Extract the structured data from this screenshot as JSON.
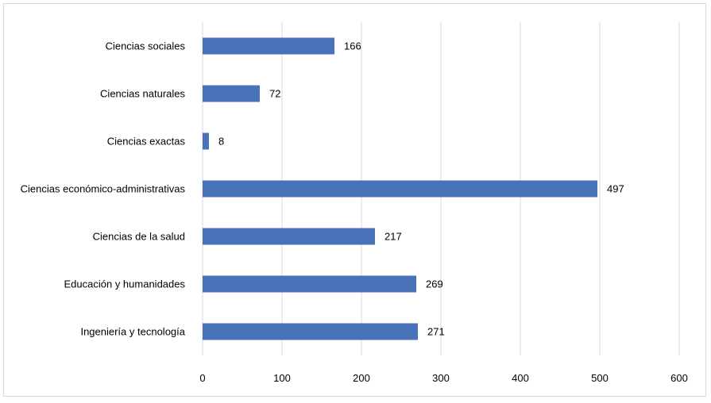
{
  "chart_data": {
    "type": "bar",
    "orientation": "horizontal",
    "categories": [
      "Ciencias sociales",
      "Ciencias naturales",
      "Ciencias exactas",
      "Ciencias económico-administrativas",
      "Ciencias de la salud",
      "Educación y humanidades",
      "Ingeniería y tecnología"
    ],
    "values": [
      166,
      72,
      8,
      497,
      217,
      269,
      271
    ],
    "xlim": [
      0,
      600
    ],
    "xticks": [
      0,
      100,
      200,
      300,
      400,
      500,
      600
    ],
    "grid": true,
    "bar_color": "#4a72b8",
    "grid_color": "#d9d9d9",
    "legend": "none"
  }
}
